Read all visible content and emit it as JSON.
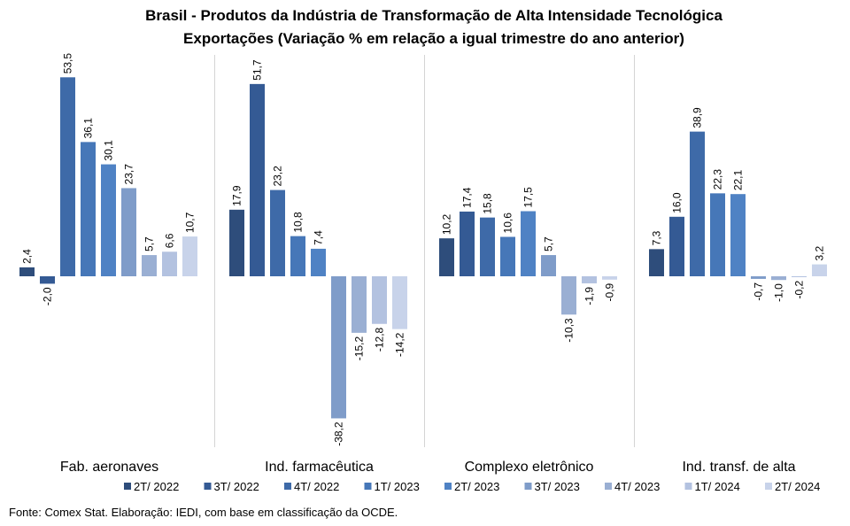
{
  "chart_data": {
    "type": "bar",
    "title": "Brasil - Produtos da Indústria de Transformação de Alta Intensidade Tecnológica",
    "subtitle": "Exportações (Variação % em relação a igual trimestre do ano anterior)",
    "categories": [
      "Fab. aeronaves",
      "Ind. farmacêutica",
      "Complexo eletrônico",
      "Ind. transf. de alta"
    ],
    "series": [
      {
        "name": "2T/ 2022",
        "color": "#2e4d7b",
        "values": [
          2.4,
          17.9,
          10.2,
          7.3
        ]
      },
      {
        "name": "3T/ 2022",
        "color": "#345a94",
        "values": [
          -2.0,
          51.7,
          17.4,
          16.0
        ]
      },
      {
        "name": "4T/ 2022",
        "color": "#3e6aa8",
        "values": [
          53.5,
          23.2,
          15.8,
          38.9
        ]
      },
      {
        "name": "1T/ 2023",
        "color": "#4677b8",
        "values": [
          36.1,
          10.8,
          10.6,
          22.3
        ]
      },
      {
        "name": "2T/ 2023",
        "color": "#4f82c4",
        "values": [
          30.1,
          7.4,
          17.5,
          22.1
        ]
      },
      {
        "name": "3T/ 2023",
        "color": "#7f9cc9",
        "values": [
          23.7,
          -38.2,
          5.7,
          -0.7
        ]
      },
      {
        "name": "4T/ 2023",
        "color": "#9aafd3",
        "values": [
          5.7,
          -15.2,
          -10.3,
          -1.0
        ]
      },
      {
        "name": "1T/ 2024",
        "color": "#b3c2e0",
        "values": [
          6.6,
          -12.8,
          -1.9,
          -0.2
        ]
      },
      {
        "name": "2T/ 2024",
        "color": "#c8d3ea",
        "values": [
          10.7,
          -14.2,
          -0.9,
          3.2
        ]
      }
    ],
    "value_labels": [
      [
        "2,4",
        "-2,0",
        "53,5",
        "36,1",
        "30,1",
        "23,7",
        "5,7",
        "6,6",
        "10,7"
      ],
      [
        "17,9",
        "51,7",
        "23,2",
        "10,8",
        "7,4",
        "-38,2",
        "-15,2",
        "-12,8",
        "-14,2"
      ],
      [
        "10,2",
        "17,4",
        "15,8",
        "10,6",
        "17,5",
        "5,7",
        "-10,3",
        "-1,9",
        "-0,9"
      ],
      [
        "7,3",
        "16,0",
        "38,9",
        "22,3",
        "22,1",
        "-0,7",
        "-1,0",
        "-0,2",
        "3,2"
      ]
    ],
    "ylim": [
      -46,
      60
    ],
    "grid": false,
    "legend_position": "bottom"
  },
  "source_text": "Fonte: Comex Stat. Elaboração: IEDI, com base em classificação da OCDE."
}
